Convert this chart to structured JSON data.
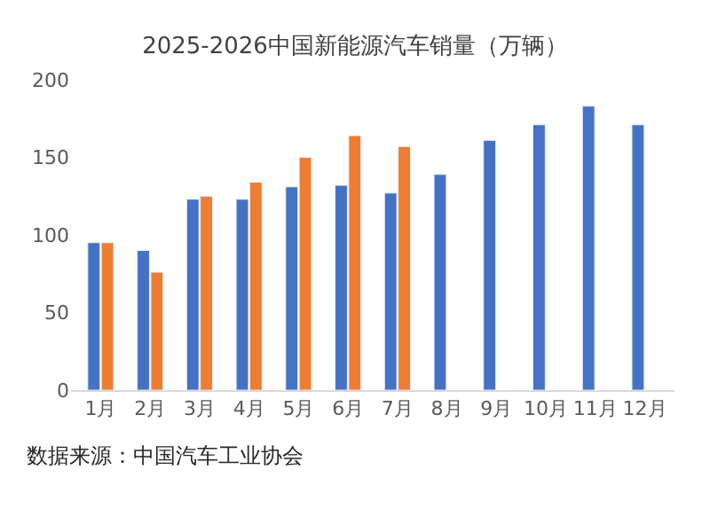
{
  "chart_data": {
    "type": "bar",
    "title": "2025-2026中国新能源汽车销量（万辆）",
    "categories": [
      "1月",
      "2月",
      "3月",
      "4月",
      "5月",
      "6月",
      "7月",
      "8月",
      "9月",
      "10月",
      "11月",
      "12月"
    ],
    "series": [
      {
        "color": "#4472c4",
        "values": [
          95,
          90,
          123,
          123,
          131,
          132,
          127,
          139,
          161,
          171,
          183,
          171
        ]
      },
      {
        "color": "#ed7d31",
        "values": [
          95,
          76,
          125,
          134,
          150,
          164,
          157,
          null,
          null,
          null,
          null,
          null
        ]
      }
    ],
    "ylim": [
      0,
      200
    ],
    "yticks": [
      0,
      50,
      100,
      150,
      200
    ],
    "grid": false,
    "annotations": [
      "数据来源：中国汽车工业协会"
    ]
  }
}
